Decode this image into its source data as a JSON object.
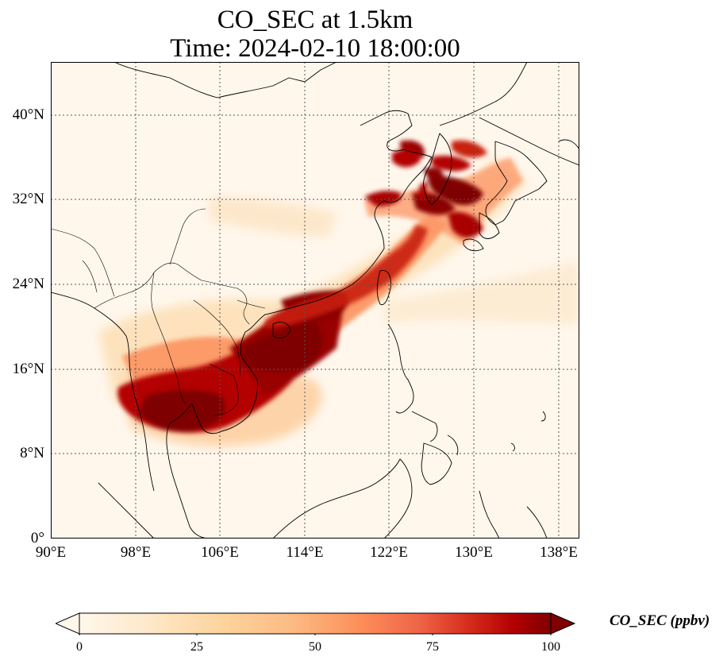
{
  "title_line1": "CO_SEC at 1.5km",
  "title_line2": "Time: 2024-02-10 18:00:00",
  "map": {
    "lon_range": [
      90,
      140
    ],
    "lat_range": [
      0,
      45
    ],
    "lat_ticks": [
      "40°N",
      "32°N",
      "24°N",
      "16°N",
      "8°N",
      "0°"
    ],
    "lon_ticks": [
      "90°E",
      "98°E",
      "106°E",
      "114°E",
      "122°E",
      "130°E",
      "138°E"
    ],
    "gridlines": true
  },
  "colorbar": {
    "label": "CO_SEC (ppbv)",
    "ticks": [
      "0",
      "25",
      "50",
      "75",
      "100"
    ],
    "range": [
      0,
      100
    ],
    "colormap": "OrRd",
    "extend": "both",
    "colors": [
      "#fff7ec",
      "#fdd49e",
      "#fc8d59",
      "#d7301f",
      "#7f0000"
    ]
  }
}
